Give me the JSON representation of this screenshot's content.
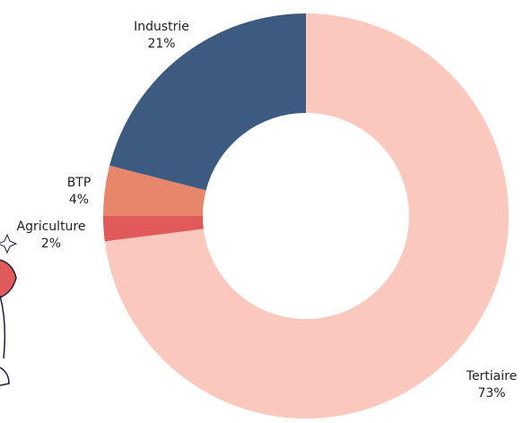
{
  "chart_data": {
    "type": "donut",
    "categories": [
      "Tertiaire",
      "Agriculture",
      "BTP",
      "Industrie"
    ],
    "values": [
      73,
      2,
      4,
      21
    ],
    "value_labels": [
      "73%",
      "2%",
      "4%",
      "21%"
    ],
    "colors": [
      "#fbc8bd",
      "#e05a5a",
      "#e8866c",
      "#3d5a80"
    ]
  }
}
